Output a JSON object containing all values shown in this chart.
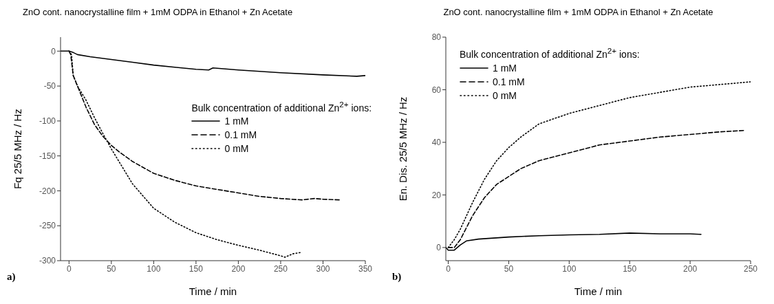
{
  "chart_data": [
    {
      "type": "line",
      "title": "ZnO cont. nanocrystalline film + 1mM ODPA in Ethanol + Zn Acetate",
      "xlabel": "Time / min",
      "ylabel": "Fq 25/5 MHz / Hz",
      "legend_title": "Bulk concentration of additional Zn$^{2+}$ ions:",
      "annotations": [
        "a)"
      ],
      "xlim": [
        -10,
        350
      ],
      "ylim": [
        -300,
        20
      ],
      "xticks": [
        0,
        50,
        100,
        150,
        200,
        250,
        300,
        350
      ],
      "yticks": [
        -300,
        -250,
        -200,
        -150,
        -100,
        -50,
        0
      ],
      "grid": false,
      "legend": "right",
      "marker": "none",
      "series": [
        {
          "name": "1 mM",
          "color": "#000000",
          "line_style": "solid",
          "x": [
            -10,
            0,
            5,
            10,
            25,
            50,
            75,
            100,
            125,
            150,
            165,
            170,
            200,
            250,
            300,
            340,
            350
          ],
          "values": [
            0,
            0,
            -2,
            -5,
            -8,
            -12,
            -16,
            -20,
            -23,
            -26,
            -27,
            -24,
            -27,
            -31,
            -34,
            -36,
            -35
          ]
        },
        {
          "name": "0.1 mM",
          "color": "#000000",
          "line_style": "dashed",
          "x": [
            0,
            2,
            5,
            10,
            20,
            30,
            40,
            50,
            60,
            75,
            100,
            125,
            150,
            175,
            200,
            225,
            250,
            275,
            290,
            300,
            320
          ],
          "values": [
            0,
            -5,
            -35,
            -50,
            -80,
            -105,
            -122,
            -135,
            -145,
            -158,
            -175,
            -185,
            -193,
            -198,
            -203,
            -208,
            -211,
            -213,
            -211,
            -212,
            -213
          ]
        },
        {
          "name": "0 mM",
          "color": "#000000",
          "line_style": "dotted",
          "x": [
            0,
            3,
            5,
            10,
            20,
            30,
            40,
            50,
            60,
            75,
            100,
            125,
            150,
            175,
            200,
            225,
            250,
            255,
            265,
            275
          ],
          "values": [
            0,
            -5,
            -35,
            -50,
            -70,
            -95,
            -118,
            -140,
            -160,
            -190,
            -225,
            -245,
            -260,
            -270,
            -278,
            -285,
            -293,
            -295,
            -290,
            -288
          ]
        }
      ]
    },
    {
      "type": "line",
      "title": "ZnO cont. nanocrystalline film + 1mM ODPA in Ethanol + Zn Acetate",
      "xlabel": "Time / min",
      "ylabel": "En. Dis. 25/5 MHz / Hz",
      "legend_title": "Bulk concentration of additional Zn$^{2+}$ ions:",
      "annotations": [
        "b)"
      ],
      "xlim": [
        -2,
        250
      ],
      "ylim": [
        -5,
        80
      ],
      "xticks": [
        0,
        50,
        100,
        150,
        200,
        250
      ],
      "yticks": [
        0,
        20,
        40,
        60,
        80
      ],
      "grid": false,
      "legend": "top left",
      "marker": "none",
      "series": [
        {
          "name": "1 mM",
          "color": "#000000",
          "line_style": "solid",
          "x": [
            -2,
            0,
            5,
            10,
            15,
            25,
            50,
            75,
            100,
            125,
            150,
            175,
            200,
            209
          ],
          "values": [
            0,
            -1,
            -1,
            1,
            2.5,
            3.2,
            4,
            4.5,
            4.8,
            5,
            5.5,
            5.2,
            5.2,
            5
          ]
        },
        {
          "name": "0.1 mM",
          "color": "#000000",
          "line_style": "dashed",
          "x": [
            0,
            5,
            10,
            20,
            30,
            40,
            50,
            60,
            75,
            100,
            125,
            150,
            175,
            200,
            225,
            245
          ],
          "values": [
            0,
            0,
            3,
            12,
            19,
            24,
            27,
            30,
            33,
            36,
            39,
            40.5,
            42,
            43,
            44,
            44.5
          ]
        },
        {
          "name": "0 mM",
          "color": "#000000",
          "line_style": "dotted",
          "x": [
            0,
            5,
            10,
            20,
            30,
            40,
            50,
            60,
            75,
            100,
            125,
            150,
            175,
            200,
            225,
            250
          ],
          "values": [
            0,
            3,
            7,
            17,
            26,
            33,
            38,
            42,
            47,
            51,
            54,
            57,
            59,
            61,
            62,
            63
          ]
        }
      ]
    }
  ]
}
